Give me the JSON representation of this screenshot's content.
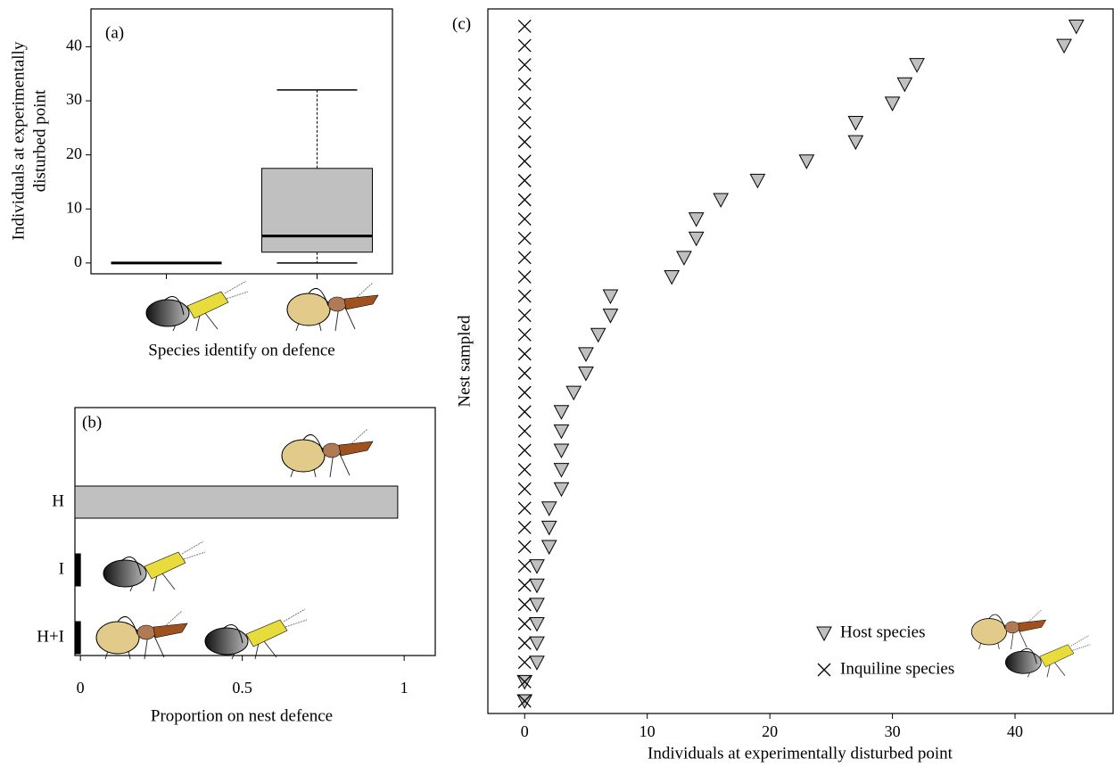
{
  "chart_data": [
    {
      "type": "box",
      "title": "(a)",
      "ylabel_lines": [
        "Individuals at experimentally",
        "disturbed point"
      ],
      "xlabel": "Species identify on defence",
      "categories": [
        null,
        null
      ],
      "boxes": [
        {
          "min": 0,
          "q1": 0,
          "median": 0,
          "q3": 0,
          "max": 0
        },
        {
          "min": 0,
          "q1": 2,
          "median": 5,
          "q3": 17.5,
          "max": 32
        }
      ],
      "color": "#c0c0c0",
      "ylim": [
        -2,
        47
      ],
      "yticks": [
        0,
        10,
        20,
        30,
        40
      ]
    },
    {
      "type": "hbar",
      "title": "(b)",
      "xlabel": "Proportion on nest defence",
      "categories": [
        "H",
        "I",
        "H+I"
      ],
      "values": [
        0.98,
        0,
        0
      ],
      "colors": [
        "#c0c0c0",
        "#000000",
        "#000000"
      ],
      "xlim": [
        -0.017,
        1.096
      ],
      "xticks": [
        0,
        0.5,
        1
      ]
    },
    {
      "type": "scatter",
      "title": "(c)",
      "xlabel": "Individuals at experimentally disturbed point",
      "ylabel": "Nest sampled",
      "series": [
        {
          "name": "Host species",
          "marker": "triangle",
          "color": "#c0c0c0",
          "x": [
            0,
            0,
            1,
            1,
            1,
            1,
            1,
            1,
            2,
            2,
            2,
            3,
            3,
            3,
            3,
            3,
            4,
            5,
            5,
            6,
            7,
            7,
            12,
            13,
            14,
            14,
            16,
            19,
            23,
            27,
            27,
            30,
            31,
            32,
            44,
            45
          ],
          "y": [
            1,
            2,
            3,
            4,
            5,
            6,
            7,
            8,
            9,
            10,
            11,
            12,
            13,
            14,
            15,
            16,
            17,
            18,
            19,
            20,
            21,
            22,
            23,
            24,
            25,
            26,
            27,
            28,
            29,
            30,
            31,
            32,
            33,
            34,
            35,
            36
          ]
        },
        {
          "name": "Inquiline species",
          "marker": "x",
          "color": "#000000",
          "x": [
            0,
            0,
            0,
            0,
            0,
            0,
            0,
            0,
            0,
            0,
            0,
            0,
            0,
            0,
            0,
            0,
            0,
            0,
            0,
            0,
            0,
            0,
            0,
            0,
            0,
            0,
            0,
            0,
            0,
            0,
            0,
            0,
            0,
            0,
            0,
            0
          ],
          "y": [
            1,
            2,
            3,
            4,
            5,
            6,
            7,
            8,
            9,
            10,
            11,
            12,
            13,
            14,
            15,
            16,
            17,
            18,
            19,
            20,
            21,
            22,
            23,
            24,
            25,
            26,
            27,
            28,
            29,
            30,
            31,
            32,
            33,
            34,
            35,
            36
          ]
        }
      ],
      "xlim": [
        -3,
        48
      ],
      "xticks": [
        0,
        10,
        20,
        30,
        40
      ],
      "ylim": [
        0.35,
        36.9
      ],
      "legend": "lower right"
    }
  ]
}
